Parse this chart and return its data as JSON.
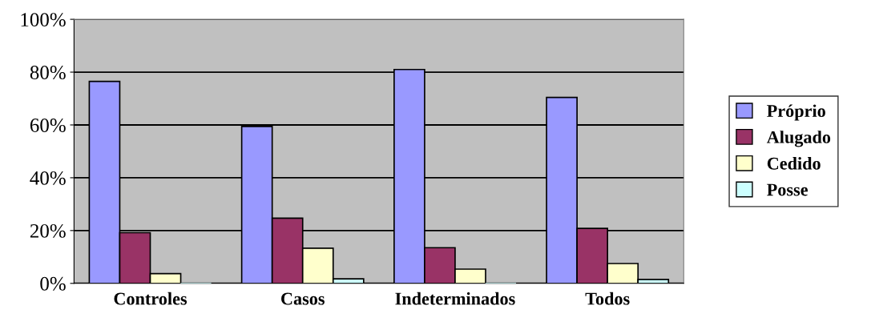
{
  "chart_data": {
    "type": "bar",
    "categories": [
      "Controles",
      "Casos",
      "Indeterminados",
      "Todos"
    ],
    "series": [
      {
        "name": "Próprio",
        "color": "#9999ff",
        "values": [
          76.5,
          59.4,
          81,
          70.4
        ]
      },
      {
        "name": "Alugado",
        "color": "#993366",
        "values": [
          19.2,
          24.7,
          13.5,
          20.8
        ]
      },
      {
        "name": "Cedido",
        "color": "#ffffcc",
        "values": [
          3.7,
          13.3,
          5.4,
          7.5
        ]
      },
      {
        "name": "Posse",
        "color": "#ccffff",
        "values": [
          0,
          1.7,
          0,
          1.5
        ]
      }
    ],
    "ylim": [
      0,
      100
    ],
    "yticks": [
      {
        "value": 0,
        "label": "0%"
      },
      {
        "value": 20,
        "label": "20%"
      },
      {
        "value": 40,
        "label": "40%"
      },
      {
        "value": 60,
        "label": "60%"
      },
      {
        "value": 80,
        "label": "80%"
      },
      {
        "value": 100,
        "label": "100%"
      }
    ],
    "grid": "y",
    "legend": "right"
  }
}
